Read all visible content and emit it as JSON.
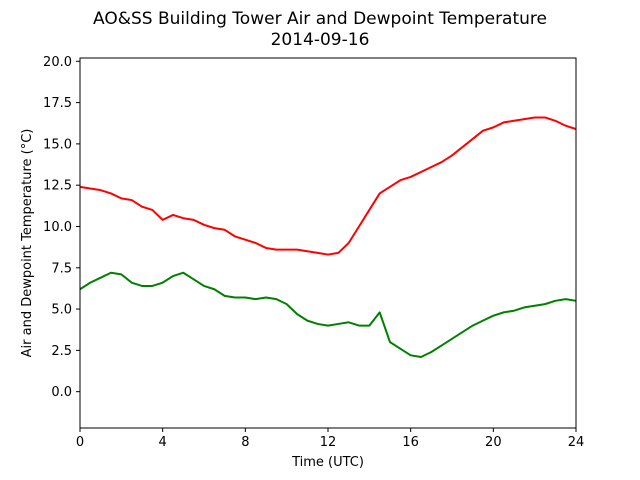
{
  "chart_data": {
    "type": "line",
    "title": "AO&SS Building Tower Air and Dewpoint Temperature",
    "subtitle": "2014-09-16",
    "xlabel": "Time (UTC)",
    "ylabel": "Air and Dewpoint Temperature (°C)",
    "xlim": [
      0,
      24
    ],
    "ylim": [
      -2.2,
      20.2
    ],
    "xticks": [
      0,
      4,
      8,
      12,
      16,
      20,
      24
    ],
    "yticks": [
      "0.0",
      "2.5",
      "5.0",
      "7.5",
      "10.0",
      "12.5",
      "15.0",
      "17.5",
      "20.0"
    ],
    "grid": false,
    "series": [
      {
        "color": "#ff0000",
        "x": [
          0,
          0.5,
          1,
          1.5,
          2,
          2.5,
          3,
          3.5,
          4,
          4.5,
          5,
          5.5,
          6,
          6.5,
          7,
          7.5,
          8,
          8.5,
          9,
          9.5,
          10,
          10.5,
          11,
          11.5,
          12,
          12.5,
          13,
          13.5,
          14,
          14.5,
          15,
          15.5,
          16,
          16.5,
          17,
          17.5,
          18,
          18.5,
          19,
          19.5,
          20,
          20.5,
          21,
          21.5,
          22,
          22.5,
          23,
          23.5,
          24
        ],
        "y": [
          12.4,
          12.3,
          12.2,
          12.0,
          11.7,
          11.6,
          11.2,
          11.0,
          10.4,
          10.7,
          10.5,
          10.4,
          10.1,
          9.9,
          9.8,
          9.4,
          9.2,
          9.0,
          8.7,
          8.6,
          8.6,
          8.6,
          8.5,
          8.4,
          8.3,
          8.4,
          9.0,
          10.0,
          11.0,
          12.0,
          12.4,
          12.8,
          13.0,
          13.3,
          13.6,
          13.9,
          14.3,
          14.8,
          15.3,
          15.8,
          16.0,
          16.3,
          16.4,
          16.5,
          16.6,
          16.6,
          16.4,
          16.1,
          15.9
        ]
      },
      {
        "color": "#008000",
        "x": [
          0,
          0.5,
          1,
          1.5,
          2,
          2.5,
          3,
          3.5,
          4,
          4.5,
          5,
          5.5,
          6,
          6.5,
          7,
          7.5,
          8,
          8.5,
          9,
          9.5,
          10,
          10.5,
          11,
          11.5,
          12,
          12.5,
          13,
          13.5,
          14,
          14.5,
          15,
          15.5,
          16,
          16.5,
          17,
          17.5,
          18,
          18.5,
          19,
          19.5,
          20,
          20.5,
          21,
          21.5,
          22,
          22.5,
          23,
          23.5,
          24
        ],
        "y": [
          6.2,
          6.6,
          6.9,
          7.2,
          7.1,
          6.6,
          6.4,
          6.4,
          6.6,
          7.0,
          7.2,
          6.8,
          6.4,
          6.2,
          5.8,
          5.7,
          5.7,
          5.6,
          5.7,
          5.6,
          5.3,
          4.7,
          4.3,
          4.1,
          4.0,
          4.1,
          4.2,
          4.0,
          4.0,
          4.8,
          3.0,
          2.6,
          2.2,
          2.1,
          2.4,
          2.8,
          3.2,
          3.6,
          4.0,
          4.3,
          4.6,
          4.8,
          4.9,
          5.1,
          5.2,
          5.3,
          5.5,
          5.6,
          5.5
        ]
      }
    ]
  }
}
